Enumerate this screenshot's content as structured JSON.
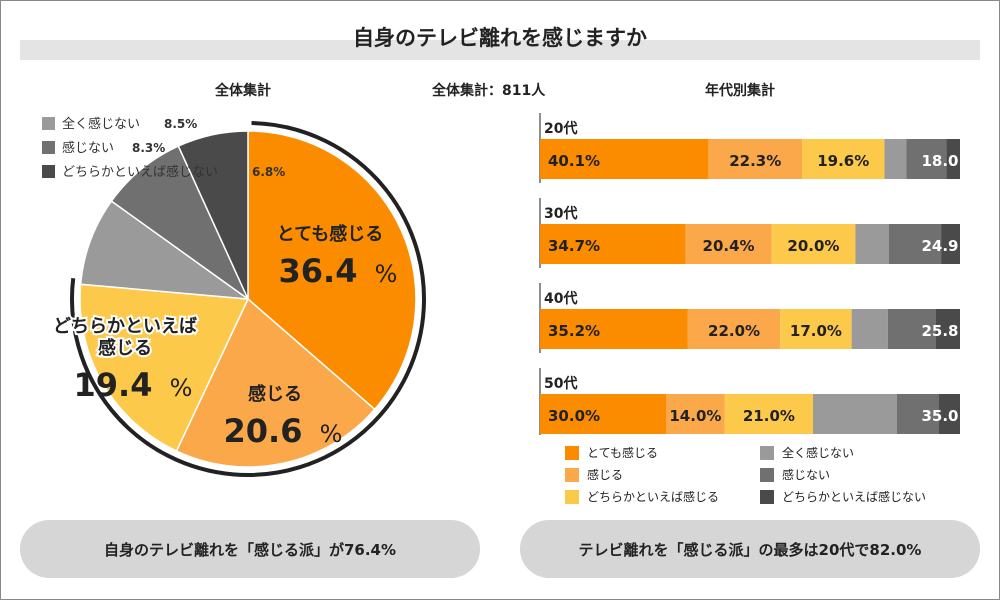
{
  "title": "自身のテレビ離れを感じますか",
  "subtitles": {
    "left": "全体集計",
    "center": "全体集計：811人",
    "right": "年代別集計"
  },
  "colors": {
    "c1": "#fb8c00",
    "c2": "#fba84b",
    "c3": "#fdc94a",
    "c4": "#9a9a9a",
    "c5": "#707070",
    "c6": "#4a4a4a"
  },
  "chart_data": [
    {
      "type": "pie",
      "title": "全体集計",
      "slices": [
        {
          "label": "とても感じる",
          "value": 36.4,
          "text": "36.4",
          "color_key": "c1"
        },
        {
          "label": "感じる",
          "value": 20.6,
          "text": "20.6",
          "color_key": "c2"
        },
        {
          "label": "どちらかといえば感じる",
          "value": 19.4,
          "text": "19.4",
          "color_key": "c3"
        },
        {
          "label": "全く感じない",
          "value": 8.5,
          "text": "8.5%",
          "color_key": "c4"
        },
        {
          "label": "感じない",
          "value": 8.3,
          "text": "8.3%",
          "color_key": "c5"
        },
        {
          "label": "どちらかといえば感じない",
          "value": 6.8,
          "text": "6.8%",
          "color_key": "c6"
        }
      ],
      "percent_sign": "%",
      "big_labels": [
        {
          "lines": [
            "とても感じる"
          ],
          "value": "36.4"
        },
        {
          "lines": [
            "感じる"
          ],
          "value": "20.6"
        },
        {
          "lines": [
            "どちらかといえば",
            "感じる"
          ],
          "value": "19.4"
        }
      ]
    },
    {
      "type": "bar",
      "orientation": "horizontal",
      "stacked": true,
      "title": "年代別集計",
      "categories": [
        "20代",
        "30代",
        "40代",
        "50代"
      ],
      "series": [
        {
          "name": "とても感じる",
          "values": [
            40.1,
            34.7,
            35.2,
            30.0
          ],
          "labels": [
            "40.1%",
            "34.7%",
            "35.2%",
            "30.0%"
          ],
          "color_key": "c1"
        },
        {
          "name": "感じる",
          "values": [
            22.3,
            20.4,
            22.0,
            14.0
          ],
          "labels": [
            "22.3%",
            "20.4%",
            "22.0%",
            "14.0%"
          ],
          "color_key": "c2"
        },
        {
          "name": "どちらかといえば感じる",
          "values": [
            19.6,
            20.0,
            17.0,
            21.0
          ],
          "labels": [
            "19.6%",
            "20.0%",
            "17.0%",
            "21.0%"
          ],
          "color_key": "c3"
        },
        {
          "name": "全く感じない",
          "values": [
            5.2,
            8.0,
            8.6,
            20.0
          ],
          "labels": [
            "",
            "",
            "",
            ""
          ],
          "color_key": "c4"
        },
        {
          "name": "感じない",
          "values": [
            9.6,
            12.4,
            11.4,
            10.0
          ],
          "labels": [
            "",
            "",
            "",
            ""
          ],
          "color_key": "c5"
        },
        {
          "name": "どちらかといえば感じない",
          "values": [
            3.2,
            4.5,
            5.8,
            5.0
          ],
          "labels": [
            "",
            "",
            "",
            ""
          ],
          "color_key": "c6"
        }
      ],
      "group_labels": [
        "18.0",
        "24.9",
        "25.8",
        "35.0"
      ],
      "xlim": [
        0,
        100
      ]
    }
  ],
  "legend": [
    {
      "label": "とても感じる",
      "color_key": "c1"
    },
    {
      "label": "全く感じない",
      "color_key": "c4"
    },
    {
      "label": "感じる",
      "color_key": "c2"
    },
    {
      "label": "感じない",
      "color_key": "c5"
    },
    {
      "label": "どちらかといえば感じる",
      "color_key": "c3"
    },
    {
      "label": "どちらかといえば感じない",
      "color_key": "c6"
    }
  ],
  "summary": {
    "left": "自身のテレビ離れを「感じる派」が76.4%",
    "right": "テレビ離れを「感じる派」の最多は20代で82.0%"
  }
}
